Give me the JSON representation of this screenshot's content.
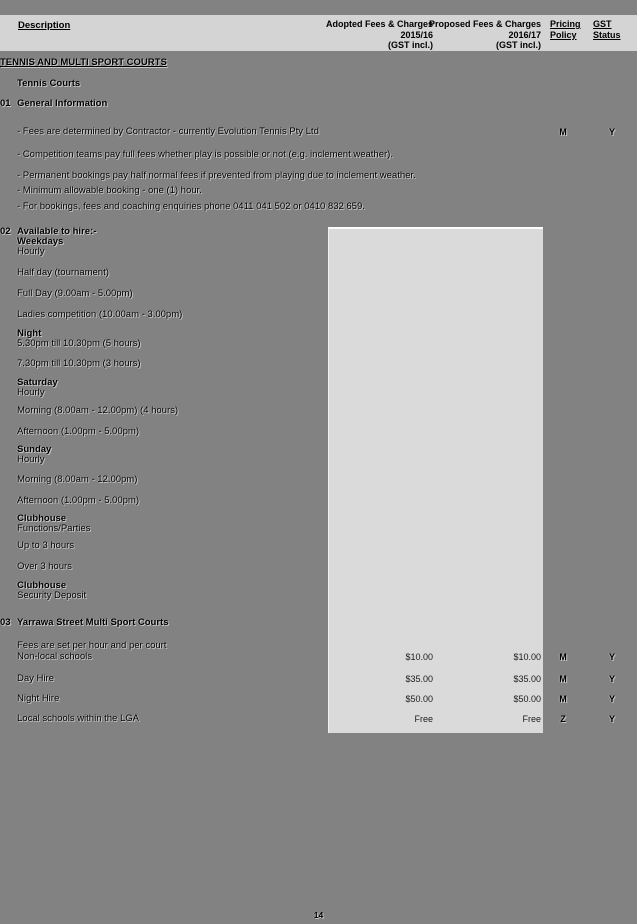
{
  "colors": {
    "page_background": "#828282",
    "header_band": "#d4d4d4",
    "highlight_block": "#dadada"
  },
  "header": {
    "description": "Description",
    "adopted": "Adopted Fees & Charges\n2015/16\n(GST incl.)",
    "proposed": "Proposed Fees & Charges\n2016/17\n(GST incl.)",
    "pricing": "Pricing\nPolicy",
    "gst_status": "GST Status"
  },
  "rows": [
    {
      "text": "TENNIS AND MULTI SPORT COURTS",
      "bold": true,
      "underline": true
    },
    {
      "text": "Tennis Courts",
      "bold": true
    },
    {
      "num": "01",
      "text": "General Information",
      "bold": true
    },
    {
      "text": "- Fees are determined by Contractor - currently Evolution Tennis Pty Ltd",
      "policy": "M",
      "gst": "Y"
    },
    {
      "text": "- Competition teams pay full fees whether play is possible or not (e.g. inclement weather)."
    },
    {
      "text": "- Permanent bookings pay half normal fees if prevented from playing due to inclement weather."
    },
    {
      "text": "- Minimum allowable booking - one (1) hour."
    },
    {
      "text": "- For bookings, fees and coaching enquiries phone 0411 041 502 or 0410 832 659."
    },
    {
      "num": "02",
      "text": "Available to hire:-",
      "bold": true
    },
    {
      "text": "Weekdays",
      "bold": true
    },
    {
      "text": "Hourly"
    },
    {
      "text": "Half day (tournament)"
    },
    {
      "text": "Full Day (9.00am - 5.00pm)"
    },
    {
      "text": "Ladies competition (10.00am - 3.00pm)"
    },
    {
      "text": "Night",
      "bold": true
    },
    {
      "text": "5.30pm till 10.30pm (5 hours)"
    },
    {
      "text": "7.30pm till 10.30pm (3 hours)"
    },
    {
      "text": "Saturday",
      "bold": true
    },
    {
      "text": "Hourly"
    },
    {
      "text": "Morning (8.00am - 12.00pm) (4 hours)"
    },
    {
      "text": "Afternoon (1.00pm - 5.00pm)"
    },
    {
      "text": "Sunday",
      "bold": true
    },
    {
      "text": "Hourly"
    },
    {
      "text": "Morning (8.00am - 12.00pm)"
    },
    {
      "text": "Afternoon (1.00pm - 5.00pm)"
    },
    {
      "text": "Clubhouse",
      "bold": true
    },
    {
      "text": "Functions/Parties"
    },
    {
      "text": "Up to 3 hours"
    },
    {
      "text": "Over 3 hours"
    },
    {
      "text": "Clubhouse",
      "bold": true
    },
    {
      "text": "Security Deposit"
    },
    {
      "num": "03",
      "text": "Yarrawa Street Multi Sport Courts",
      "bold": true
    },
    {
      "text": "Fees are set per hour and per court"
    },
    {
      "text": "Non-local schools",
      "adopted": "$10.00",
      "proposed": "$10.00",
      "policy": "M",
      "gst": "Y"
    },
    {
      "text": "Day Hire",
      "adopted": "$35.00",
      "proposed": "$35.00",
      "policy": "M",
      "gst": "Y"
    },
    {
      "text": "Night Hire",
      "adopted": "$50.00",
      "proposed": "$50.00",
      "policy": "M",
      "gst": "Y"
    },
    {
      "text": "Local schools within the LGA",
      "adopted": "Free",
      "proposed": "Free",
      "policy": "Z",
      "gst": "Y"
    }
  ],
  "footer": {
    "page_number": "14"
  }
}
